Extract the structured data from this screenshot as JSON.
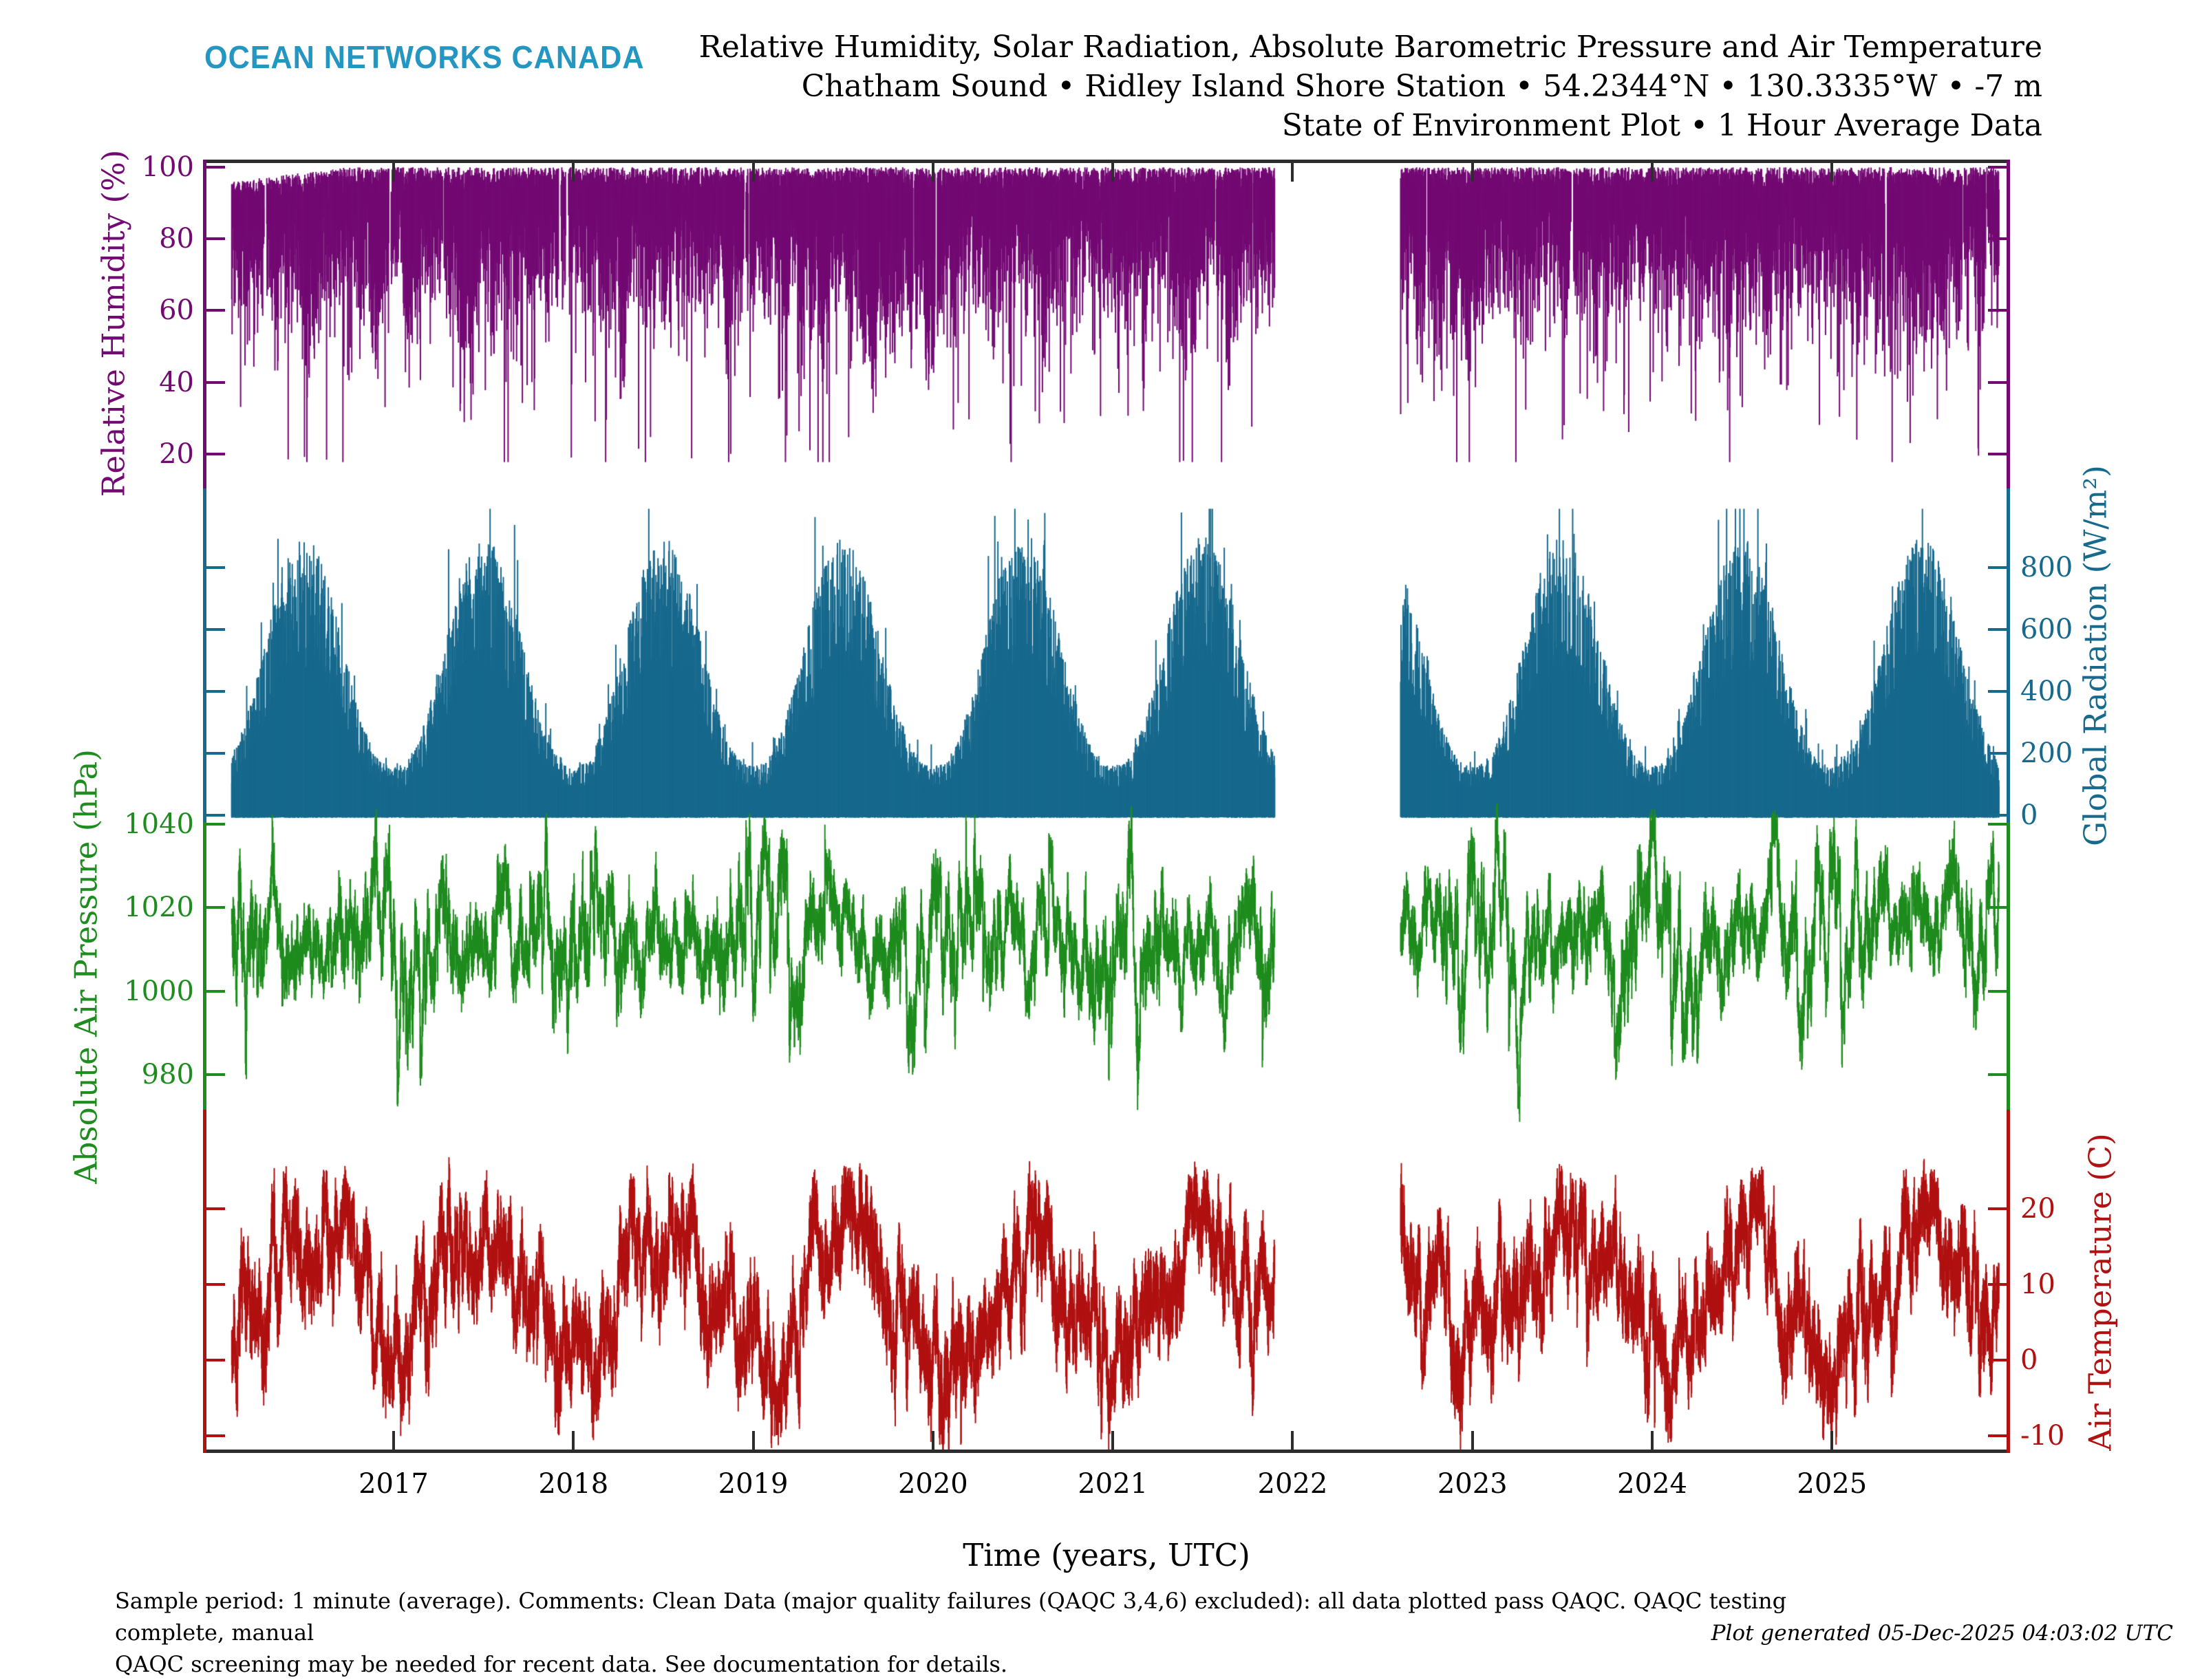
{
  "logo": "OCEAN NETWORKS CANADA",
  "logo_color": "#2496c2",
  "title": {
    "line1": "Relative Humidity, Solar Radiation, Absolute Barometric Pressure and Air Temperature",
    "line2": "Chatham Sound • Ridley Island Shore Station • 54.2344°N • 130.3335°W • -7 m",
    "line3": "State of Environment Plot • 1 Hour Average Data"
  },
  "footer": {
    "line1": "Sample period: 1 minute (average). Comments: Clean Data (major quality failures (QAQC 3,4,6) excluded): all data plotted pass QAQC. QAQC testing complete, manual",
    "line2": "QAQC screening may be needed for recent data. See documentation for details.",
    "generated": "Plot generated 05-Dec-2025 04:03:02 UTC"
  },
  "frame_color": "#2d2d2d",
  "chart_data": {
    "type": "line",
    "x_axis": {
      "label": "Time (years, UTC)",
      "ticks": [
        2017,
        2018,
        2019,
        2020,
        2021,
        2022,
        2023,
        2024,
        2025
      ],
      "range": [
        2015.94,
        2025.99
      ],
      "data_start": 2016.1,
      "data_end": 2025.93,
      "gap": [
        2021.9,
        2022.6
      ]
    },
    "panels": [
      {
        "id": "humidity",
        "label": "Relative Humidity (%)",
        "side": "left",
        "color": "#730973",
        "ticks": [
          100,
          80,
          60,
          40,
          20
        ],
        "range": [
          9,
          102
        ],
        "envelope": {
          "typical_high": 100,
          "typical_low": 70,
          "spike_low": 18
        }
      },
      {
        "id": "radiation",
        "label": "Global Radiation (W/m²)",
        "side": "right",
        "color": "#17698d",
        "ticks": [
          800,
          600,
          400,
          200,
          0
        ],
        "range": [
          -25,
          1060
        ],
        "baseline": 0,
        "seasonal": {
          "winter_peak": 160,
          "summer_peak": 900,
          "spike_max": 990
        }
      },
      {
        "id": "pressure",
        "label": "Absolute Air Pressure (hPa)",
        "side": "left",
        "color": "#1e8c1e",
        "ticks": [
          1040,
          1020,
          1000,
          980
        ],
        "range": [
          971,
          1041
        ],
        "stats": {
          "mean": 1013,
          "typical_low": 995,
          "typical_high": 1030,
          "extreme_low": 974,
          "extreme_high": 1039
        }
      },
      {
        "id": "temperature",
        "label": "Air Temperature (C)",
        "side": "right",
        "color": "#b11111",
        "ticks": [
          20,
          10,
          0,
          -10
        ],
        "range": [
          -12.5,
          33
        ],
        "seasonal": {
          "winter_mean": 1.8,
          "summer_mean": 15.0,
          "extreme_low": -10.8,
          "extreme_high": 21.5
        }
      }
    ]
  }
}
